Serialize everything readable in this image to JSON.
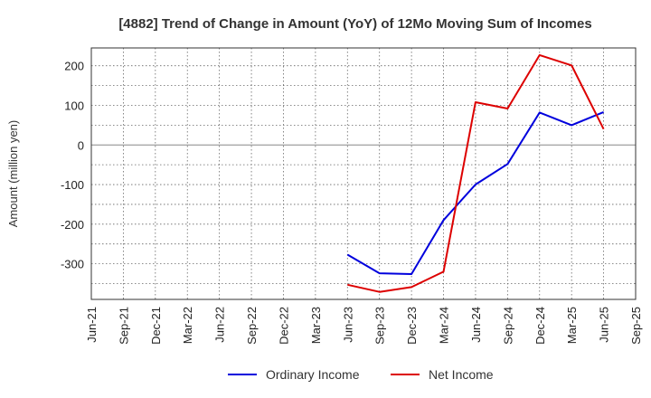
{
  "chart_data": {
    "type": "line",
    "title": "[4882]  Trend of Change in Amount (YoY) of 12Mo Moving Sum of Incomes",
    "xlabel": "",
    "ylabel": "Amount (million yen)",
    "ylim": [
      -390,
      245
    ],
    "yticks": [
      200,
      100,
      0,
      -100,
      -200,
      -300
    ],
    "grid": true,
    "legend_position": "bottom",
    "categories": [
      "Jun-21",
      "Sep-21",
      "Dec-21",
      "Mar-22",
      "Jun-22",
      "Sep-22",
      "Dec-22",
      "Mar-23",
      "Jun-23",
      "Sep-23",
      "Dec-23",
      "Mar-24",
      "Jun-24",
      "Sep-24",
      "Dec-24",
      "Mar-25",
      "Jun-25",
      "Sep-25"
    ],
    "series": [
      {
        "name": "Ordinary Income",
        "color": "#0000dd",
        "values": [
          null,
          null,
          null,
          null,
          null,
          null,
          null,
          null,
          -277,
          -324,
          -326,
          -190,
          -100,
          -48,
          82,
          50,
          83,
          null
        ]
      },
      {
        "name": "Net Income",
        "color": "#dd0000",
        "values": [
          null,
          null,
          null,
          null,
          null,
          null,
          null,
          null,
          -353,
          -371,
          -359,
          -320,
          108,
          92,
          227,
          201,
          40,
          null
        ]
      }
    ]
  }
}
